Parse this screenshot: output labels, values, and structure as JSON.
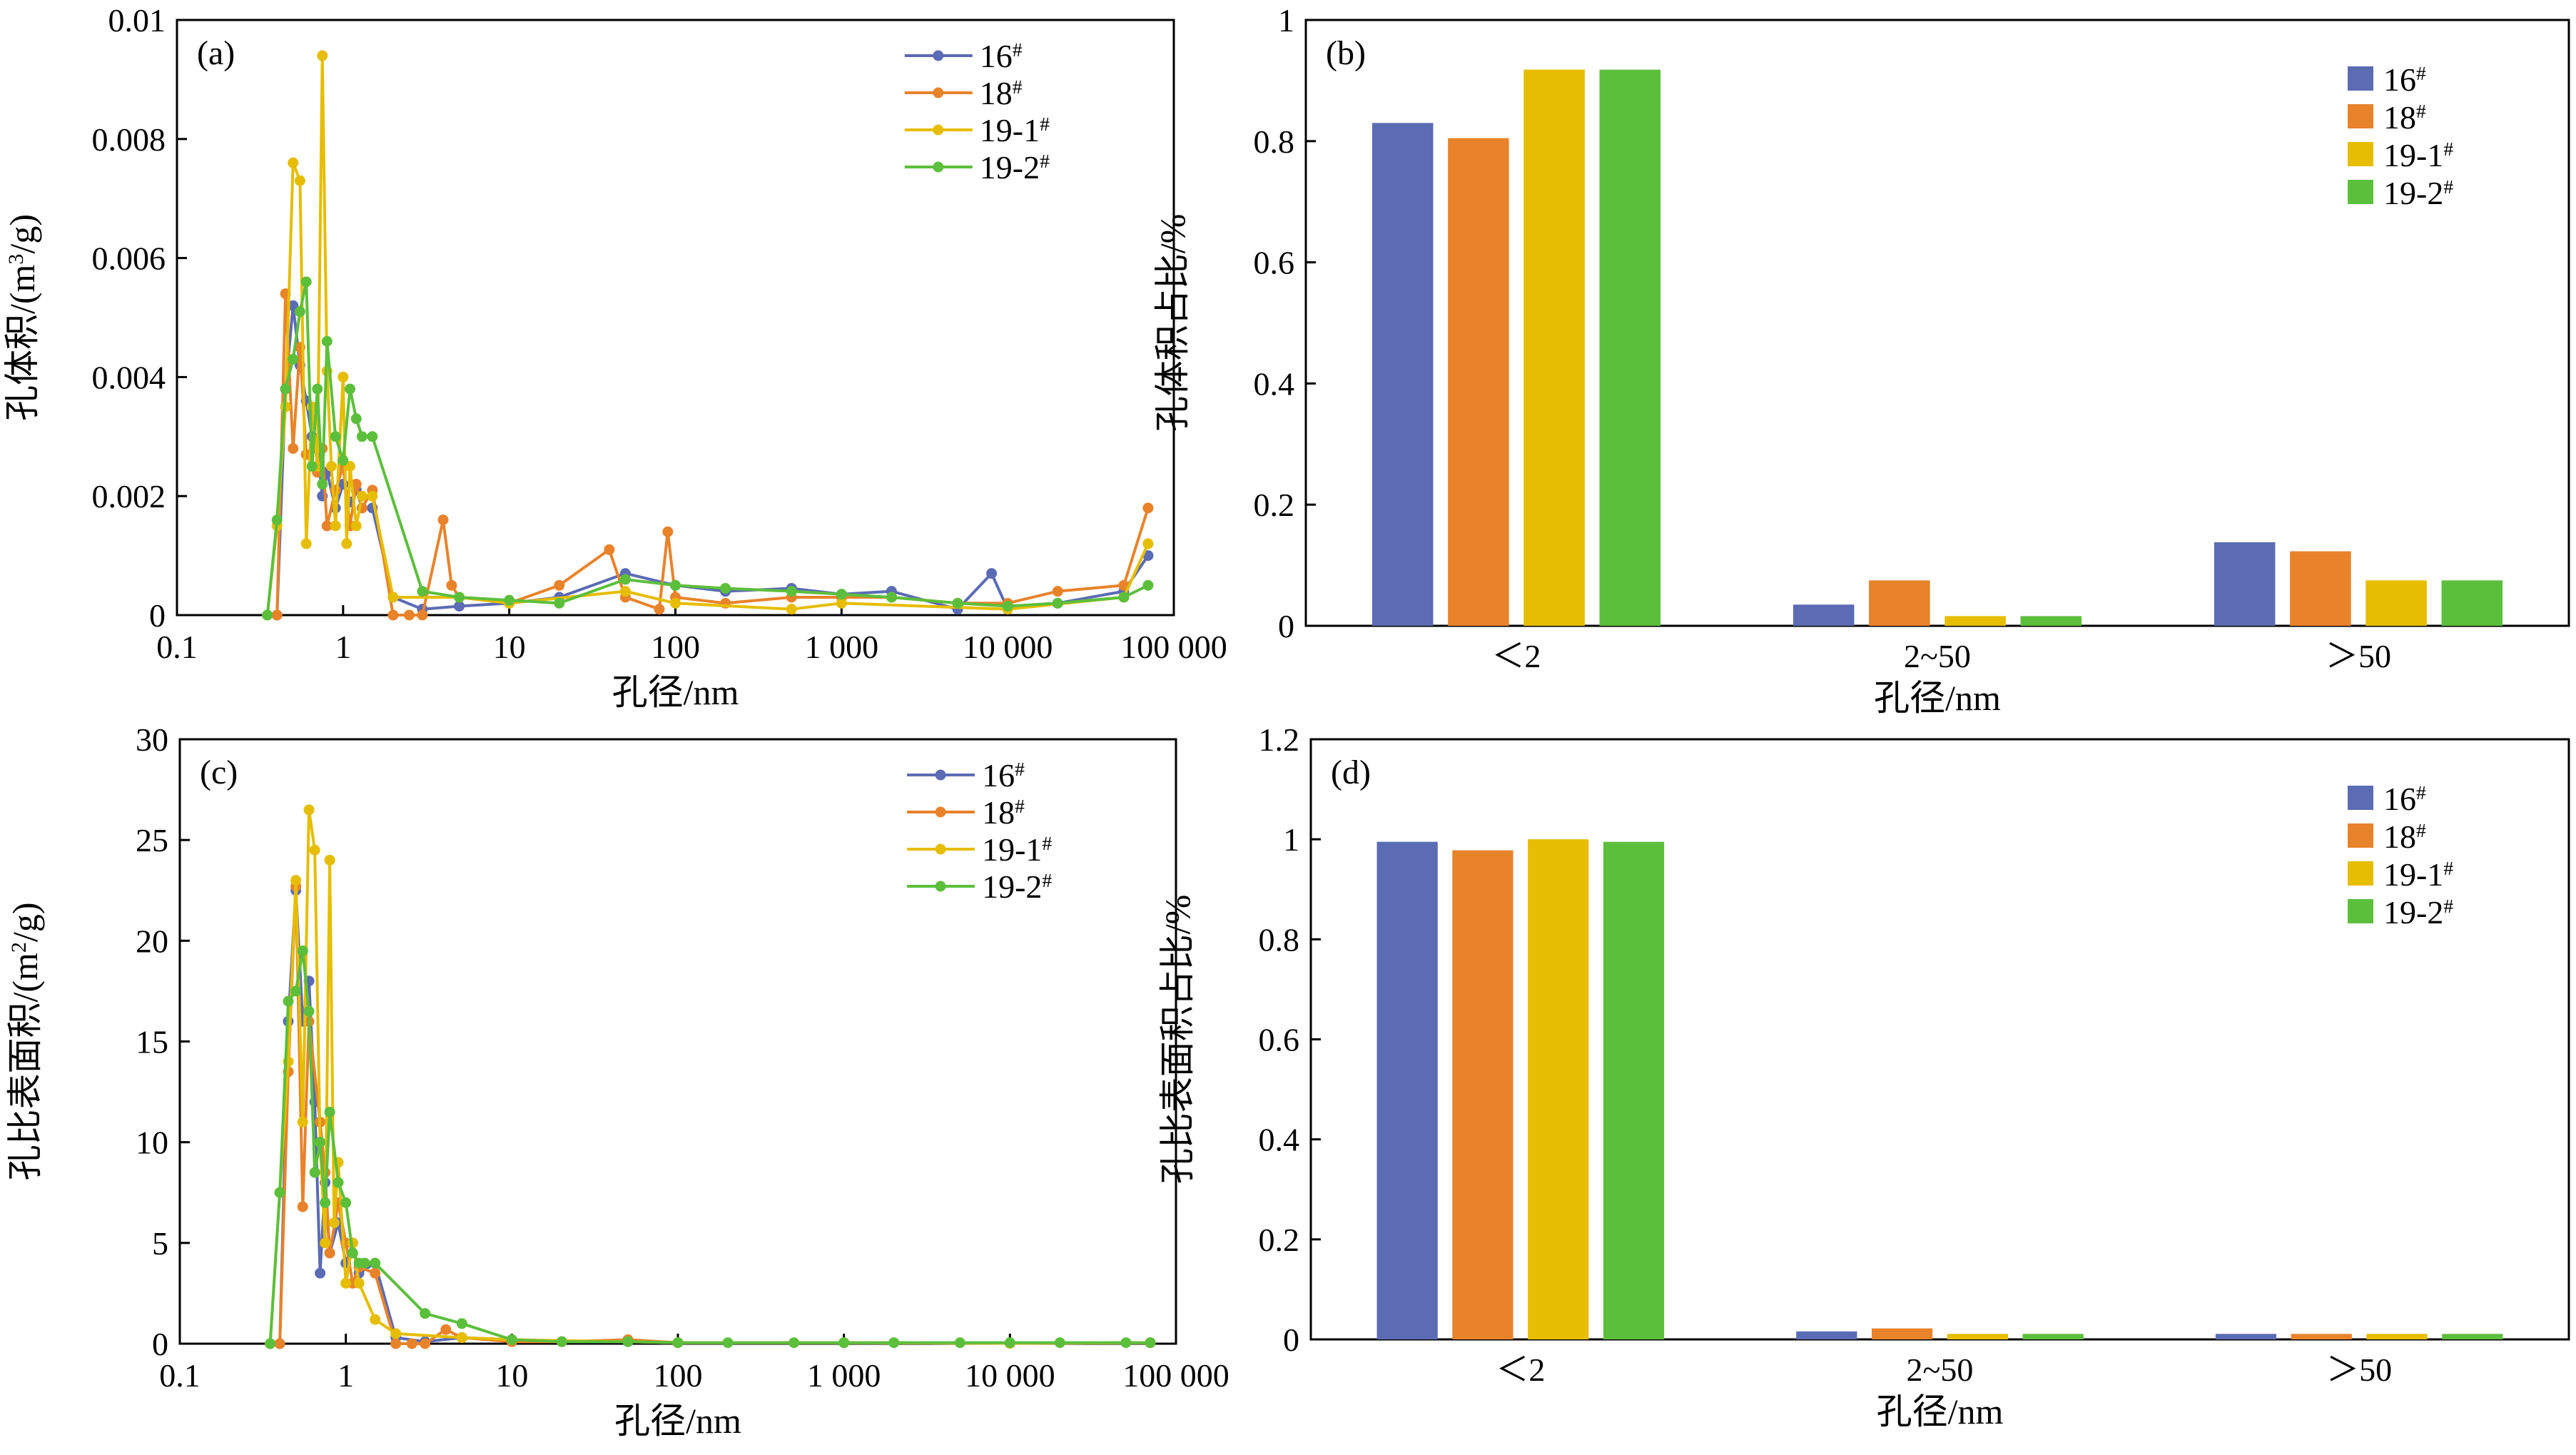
{
  "colors": {
    "16#": "#5b6bb4",
    "18#": "#e8832a",
    "19-1#": "#e6bd00",
    "19-2#": "#5cbf3c"
  },
  "chart_data": [
    {
      "id": "a",
      "type": "line",
      "panel_label": "(a)",
      "xscale": "log",
      "xlabel": "孔径/nm",
      "ylabel": "孔体积/(m³/g)",
      "xlim": [
        0.1,
        100000
      ],
      "ylim": [
        0,
        0.01
      ],
      "xtick_labels": [
        "0.1",
        "1",
        "10",
        "100",
        "1 000",
        "10 000",
        "100 000"
      ],
      "ytick_labels": [
        "0",
        "0.002",
        "0.004",
        "0.006",
        "0.008",
        "0.01"
      ],
      "legend": [
        "16#",
        "18#",
        "19-1#",
        "19-2#"
      ],
      "series": [
        {
          "name": "16#",
          "x": [
            0.35,
            0.4,
            0.45,
            0.5,
            0.55,
            0.6,
            0.65,
            0.7,
            0.75,
            0.8,
            0.9,
            1,
            1.1,
            1.2,
            1.3,
            1.5,
            2,
            3,
            5,
            10,
            20,
            50,
            100,
            200,
            500,
            1000,
            2000,
            5000,
            8000,
            10000,
            20000,
            50000,
            70000
          ],
          "y": [
            0,
            0,
            0.0038,
            0.0052,
            0.0042,
            0.0036,
            0.003,
            0.0028,
            0.002,
            0.0024,
            0.0018,
            0.0022,
            0.0019,
            0.0021,
            0.0018,
            0.0018,
            0.0003,
            0.0001,
            0.00015,
            0.0002,
            0.0003,
            0.0007,
            0.0005,
            0.0004,
            0.00045,
            0.00035,
            0.0004,
            0.0001,
            0.0007,
            0.0001,
            0.0002,
            0.0004,
            0.001
          ]
        },
        {
          "name": "18#",
          "x": [
            0.4,
            0.45,
            0.5,
            0.55,
            0.6,
            0.7,
            0.75,
            0.8,
            0.9,
            1,
            1.1,
            1.2,
            1.3,
            1.5,
            2,
            2.5,
            3,
            4,
            4.5,
            5,
            10,
            20,
            40,
            50,
            80,
            90,
            100,
            200,
            500,
            1000,
            2000,
            5000,
            10000,
            20000,
            50000,
            70000
          ],
          "y": [
            0,
            0.0054,
            0.0028,
            0.0045,
            0.0027,
            0.0024,
            0.0028,
            0.0015,
            0.0021,
            0.0025,
            0.0015,
            0.0022,
            0.0018,
            0.0021,
            0,
            0,
            0,
            0.0016,
            0.0005,
            0.0003,
            0.0002,
            0.0005,
            0.0011,
            0.0003,
            0.0001,
            0.0014,
            0.0003,
            0.0002,
            0.0003,
            0.0003,
            0.0003,
            0.0002,
            0.0002,
            0.0004,
            0.0005,
            0.0018
          ]
        },
        {
          "name": "19-1#",
          "x": [
            0.35,
            0.4,
            0.45,
            0.5,
            0.55,
            0.6,
            0.65,
            0.7,
            0.75,
            0.8,
            0.85,
            0.9,
            1,
            1.05,
            1.1,
            1.2,
            1.3,
            1.5,
            2,
            5,
            10,
            50,
            100,
            500,
            1000,
            10000,
            50000,
            70000
          ],
          "y": [
            0,
            0.0015,
            0.0035,
            0.0076,
            0.0073,
            0.0012,
            0.0035,
            0.0025,
            0.0094,
            0.0041,
            0.0025,
            0.0015,
            0.004,
            0.0012,
            0.0025,
            0.0015,
            0.002,
            0.002,
            0.0003,
            0.0003,
            0.0002,
            0.0004,
            0.0002,
            0.0001,
            0.0002,
            0.0001,
            0.0003,
            0.0012
          ]
        },
        {
          "name": "19-2#",
          "x": [
            0.35,
            0.4,
            0.45,
            0.5,
            0.55,
            0.6,
            0.65,
            0.7,
            0.75,
            0.8,
            0.9,
            1,
            1.1,
            1.2,
            1.3,
            1.5,
            3,
            5,
            10,
            20,
            50,
            100,
            200,
            500,
            1000,
            2000,
            5000,
            10000,
            20000,
            50000,
            70000
          ],
          "y": [
            0,
            0.0016,
            0.0038,
            0.0043,
            0.0051,
            0.0056,
            0.0025,
            0.0038,
            0.0022,
            0.0046,
            0.003,
            0.0026,
            0.0038,
            0.0033,
            0.003,
            0.003,
            0.0004,
            0.0003,
            0.00025,
            0.0002,
            0.0006,
            0.0005,
            0.00045,
            0.0004,
            0.00035,
            0.0003,
            0.0002,
            0.00015,
            0.0002,
            0.0003,
            0.0005
          ]
        }
      ]
    },
    {
      "id": "b",
      "type": "bar",
      "panel_label": "(b)",
      "xlabel": "孔径/nm",
      "ylabel": "孔体积占比/%",
      "categories": [
        "＜2",
        "2~50",
        "＞50"
      ],
      "ylim": [
        0,
        1
      ],
      "ytick_labels": [
        "0",
        "0.2",
        "0.4",
        "0.6",
        "0.8",
        "1"
      ],
      "legend": [
        "16#",
        "18#",
        "19-1#",
        "19-2#"
      ],
      "series": [
        {
          "name": "16#",
          "values": [
            0.83,
            0.035,
            0.138
          ]
        },
        {
          "name": "18#",
          "values": [
            0.805,
            0.075,
            0.123
          ]
        },
        {
          "name": "19-1#",
          "values": [
            0.918,
            0.016,
            0.075
          ]
        },
        {
          "name": "19-2#",
          "values": [
            0.918,
            0.016,
            0.075
          ]
        }
      ]
    },
    {
      "id": "c",
      "type": "line",
      "panel_label": "(c)",
      "xscale": "log",
      "xlabel": "孔径/nm",
      "ylabel": "孔比表面积/(m²/g)",
      "xlim": [
        0.1,
        100000
      ],
      "ylim": [
        0,
        30
      ],
      "xtick_labels": [
        "0.1",
        "1",
        "10",
        "100",
        "1 000",
        "10 000",
        "100 000"
      ],
      "ytick_labels": [
        "0",
        "5",
        "10",
        "15",
        "20",
        "25",
        "30"
      ],
      "legend": [
        "16#",
        "18#",
        "19-1#",
        "19-2#"
      ],
      "series": [
        {
          "name": "16#",
          "x": [
            0.35,
            0.4,
            0.45,
            0.5,
            0.55,
            0.6,
            0.65,
            0.7,
            0.75,
            0.8,
            0.9,
            1,
            1.1,
            1.2,
            1.5,
            2,
            3,
            5,
            10,
            20,
            50,
            100,
            1000,
            10000,
            70000
          ],
          "y": [
            0,
            0,
            16,
            22.5,
            16,
            18,
            12,
            3.5,
            8,
            4.5,
            6,
            4,
            5,
            3.5,
            4,
            0.3,
            0.1,
            0.3,
            0.2,
            0.1,
            0.1,
            0.05,
            0.05,
            0.02,
            0.05
          ]
        },
        {
          "name": "18#",
          "x": [
            0.4,
            0.45,
            0.5,
            0.55,
            0.6,
            0.7,
            0.75,
            0.8,
            0.9,
            1,
            1.1,
            1.2,
            1.5,
            2,
            2.5,
            3,
            4,
            5,
            10,
            20,
            50,
            100,
            1000,
            10000,
            70000
          ],
          "y": [
            0,
            13.5,
            22.7,
            6.8,
            16,
            11,
            8.5,
            4.5,
            7,
            5,
            3,
            3.8,
            3.5,
            0,
            0,
            0,
            0.7,
            0.3,
            0.1,
            0.1,
            0.2,
            0.05,
            0.05,
            0.02,
            0.05
          ]
        },
        {
          "name": "19-1#",
          "x": [
            0.35,
            0.4,
            0.45,
            0.5,
            0.55,
            0.6,
            0.65,
            0.7,
            0.75,
            0.8,
            0.85,
            0.9,
            1,
            1.1,
            1.2,
            1.5,
            2,
            5,
            10,
            100,
            1000,
            10000,
            70000
          ],
          "y": [
            0,
            7.5,
            14,
            23,
            11,
            26.5,
            24.5,
            10,
            5,
            24,
            6,
            9,
            3,
            5,
            3,
            1.2,
            0.5,
            0.3,
            0.2,
            0.05,
            0.05,
            0.02,
            0.05
          ]
        },
        {
          "name": "19-2#",
          "x": [
            0.35,
            0.4,
            0.45,
            0.5,
            0.55,
            0.6,
            0.65,
            0.7,
            0.75,
            0.8,
            0.9,
            1,
            1.1,
            1.2,
            1.3,
            1.5,
            3,
            5,
            10,
            20,
            50,
            100,
            200,
            500,
            1000,
            2000,
            5000,
            10000,
            20000,
            50000,
            70000
          ],
          "y": [
            0,
            7.5,
            17,
            17.5,
            19.5,
            16.5,
            8.5,
            10,
            7,
            11.5,
            8,
            7,
            4.5,
            4,
            4,
            4,
            1.5,
            1,
            0.2,
            0.1,
            0.1,
            0.05,
            0.05,
            0.05,
            0.05,
            0.05,
            0.05,
            0.05,
            0.05,
            0.05,
            0.05
          ]
        }
      ]
    },
    {
      "id": "d",
      "type": "bar",
      "panel_label": "(d)",
      "xlabel": "孔径/nm",
      "ylabel": "孔比表面积占比/%",
      "categories": [
        "＜2",
        "2~50",
        "＞50"
      ],
      "ylim": [
        0,
        1.2
      ],
      "ytick_labels": [
        "0",
        "0.2",
        "0.4",
        "0.6",
        "0.8",
        "1",
        "1.2"
      ],
      "legend": [
        "16#",
        "18#",
        "19-1#",
        "19-2#"
      ],
      "series": [
        {
          "name": "16#",
          "values": [
            0.995,
            0.016,
            0.011
          ]
        },
        {
          "name": "18#",
          "values": [
            0.978,
            0.022,
            0.011
          ]
        },
        {
          "name": "19-1#",
          "values": [
            1.0,
            0.011,
            0.011
          ]
        },
        {
          "name": "19-2#",
          "values": [
            0.995,
            0.011,
            0.011
          ]
        }
      ]
    }
  ]
}
